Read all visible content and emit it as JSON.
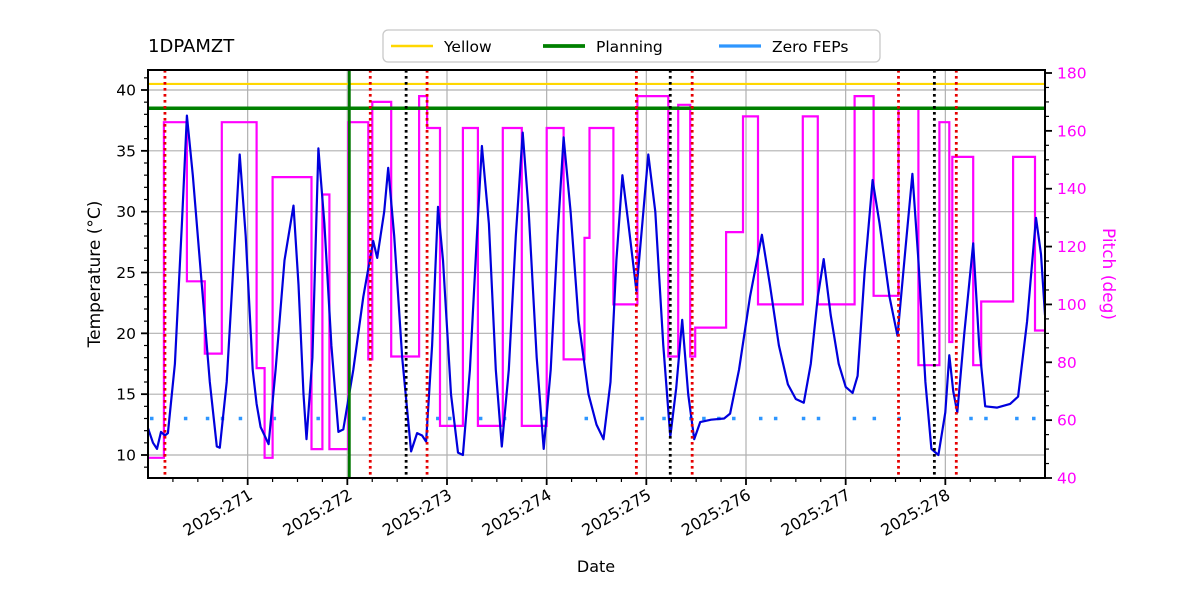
{
  "figure": {
    "title": "1DPAMZT",
    "xlabel": "Date",
    "ylabel_left": "Temperature (°C)",
    "ylabel_right": "Pitch (deg)",
    "legend": [
      {
        "label": "Yellow",
        "color": "#ffd700"
      },
      {
        "label": "Planning",
        "color": "#008000"
      },
      {
        "label": "Zero FEPs",
        "color": "#2e96ff"
      }
    ]
  },
  "chart_data": {
    "type": "line",
    "title": "1DPAMZT",
    "xlabel": "Date",
    "x_range_days": [
      270,
      279
    ],
    "x_major_ticks": [
      {
        "day": 271,
        "label": "2025:271"
      },
      {
        "day": 272,
        "label": "2025:272"
      },
      {
        "day": 273,
        "label": "2025:273"
      },
      {
        "day": 274,
        "label": "2025:274"
      },
      {
        "day": 275,
        "label": "2025:275"
      },
      {
        "day": 276,
        "label": "2025:276"
      },
      {
        "day": 277,
        "label": "2025:277"
      },
      {
        "day": 278,
        "label": "2025:278"
      }
    ],
    "x_minor_step": 0.25,
    "y_left": {
      "label": "Temperature (°C)",
      "ticks": [
        10,
        15,
        20,
        25,
        30,
        35,
        40
      ],
      "minor_step": 1,
      "axis_color": "#000000"
    },
    "y_right": {
      "label": "Pitch (deg)",
      "ticks": [
        40,
        60,
        80,
        100,
        120,
        140,
        160,
        180
      ],
      "minor_step": 5,
      "axis_color": "#ff00ff"
    },
    "grid": {
      "show": true,
      "color": "#b0b0b0"
    },
    "limit_lines": [
      {
        "name": "Yellow",
        "value": 40.5,
        "color": "#ffd700"
      },
      {
        "name": "Planning",
        "value": 38.5,
        "color": "#008000"
      }
    ],
    "vlines": {
      "red_dotted": [
        270.17,
        272.23,
        272.8,
        274.9,
        275.46,
        277.53,
        278.11
      ],
      "black_dotted": [
        272.59,
        275.24,
        277.89
      ],
      "green_solid": [
        272.02
      ],
      "red_color": "#e60000",
      "black_color": "#000000",
      "green_color": "#007700"
    },
    "series": [
      {
        "name": "temperature",
        "axis": "temp",
        "color": "#0000dd",
        "points": [
          [
            270.0,
            12.2
          ],
          [
            270.05,
            11.0
          ],
          [
            270.09,
            10.5
          ],
          [
            270.13,
            11.9
          ],
          [
            270.17,
            11.6
          ],
          [
            270.2,
            11.8
          ],
          [
            270.27,
            17.5
          ],
          [
            270.34,
            29.0
          ],
          [
            270.39,
            37.9
          ],
          [
            270.45,
            33.0
          ],
          [
            270.53,
            25.0
          ],
          [
            270.62,
            16.0
          ],
          [
            270.69,
            10.7
          ],
          [
            270.72,
            10.6
          ],
          [
            270.79,
            16.0
          ],
          [
            270.86,
            26.0
          ],
          [
            270.92,
            34.7
          ],
          [
            270.98,
            28.0
          ],
          [
            271.05,
            17.0
          ],
          [
            271.09,
            14.2
          ],
          [
            271.13,
            12.3
          ],
          [
            271.21,
            10.9
          ],
          [
            271.28,
            17.0
          ],
          [
            271.37,
            26.0
          ],
          [
            271.46,
            30.5
          ],
          [
            271.51,
            24.0
          ],
          [
            271.56,
            15.0
          ],
          [
            271.59,
            11.3
          ],
          [
            271.65,
            18.0
          ],
          [
            271.71,
            35.2
          ],
          [
            271.77,
            29.0
          ],
          [
            271.84,
            19.0
          ],
          [
            271.91,
            11.9
          ],
          [
            271.96,
            12.1
          ],
          [
            272.06,
            17.0
          ],
          [
            272.16,
            23.0
          ],
          [
            272.26,
            27.6
          ],
          [
            272.3,
            26.2
          ],
          [
            272.37,
            30.0
          ],
          [
            272.41,
            33.6
          ],
          [
            272.47,
            28.0
          ],
          [
            272.55,
            18.0
          ],
          [
            272.64,
            10.3
          ],
          [
            272.7,
            11.8
          ],
          [
            272.75,
            11.6
          ],
          [
            272.79,
            11.1
          ],
          [
            272.85,
            19.0
          ],
          [
            272.91,
            30.4
          ],
          [
            272.96,
            26.0
          ],
          [
            273.04,
            15.0
          ],
          [
            273.11,
            10.2
          ],
          [
            273.16,
            10.0
          ],
          [
            273.23,
            17.0
          ],
          [
            273.3,
            28.0
          ],
          [
            273.35,
            35.4
          ],
          [
            273.42,
            29.0
          ],
          [
            273.49,
            17.0
          ],
          [
            273.55,
            10.7
          ],
          [
            273.62,
            17.0
          ],
          [
            273.69,
            28.0
          ],
          [
            273.76,
            36.5
          ],
          [
            273.82,
            30.0
          ],
          [
            273.9,
            18.0
          ],
          [
            273.97,
            10.5
          ],
          [
            274.04,
            17.0
          ],
          [
            274.11,
            28.0
          ],
          [
            274.17,
            36.1
          ],
          [
            274.24,
            30.0
          ],
          [
            274.32,
            21.0
          ],
          [
            274.42,
            15.0
          ],
          [
            274.5,
            12.5
          ],
          [
            274.57,
            11.3
          ],
          [
            274.64,
            16.0
          ],
          [
            274.7,
            26.0
          ],
          [
            274.76,
            33.0
          ],
          [
            274.82,
            29.0
          ],
          [
            274.9,
            23.5
          ],
          [
            274.96,
            29.0
          ],
          [
            275.02,
            34.7
          ],
          [
            275.09,
            30.0
          ],
          [
            275.17,
            19.0
          ],
          [
            275.24,
            11.5
          ],
          [
            275.3,
            15.5
          ],
          [
            275.36,
            21.1
          ],
          [
            275.42,
            15.0
          ],
          [
            275.48,
            11.3
          ],
          [
            275.54,
            12.7
          ],
          [
            275.65,
            12.9
          ],
          [
            275.78,
            13.0
          ],
          [
            275.84,
            13.4
          ],
          [
            275.93,
            17.0
          ],
          [
            276.04,
            23.0
          ],
          [
            276.16,
            28.1
          ],
          [
            276.24,
            24.0
          ],
          [
            276.33,
            19.0
          ],
          [
            276.42,
            15.8
          ],
          [
            276.5,
            14.6
          ],
          [
            276.58,
            14.3
          ],
          [
            276.65,
            17.5
          ],
          [
            276.72,
            23.0
          ],
          [
            276.78,
            26.1
          ],
          [
            276.85,
            21.5
          ],
          [
            276.93,
            17.5
          ],
          [
            277.0,
            15.6
          ],
          [
            277.07,
            15.1
          ],
          [
            277.12,
            16.5
          ],
          [
            277.19,
            25.0
          ],
          [
            277.27,
            32.6
          ],
          [
            277.34,
            29.0
          ],
          [
            277.44,
            23.0
          ],
          [
            277.52,
            19.8
          ],
          [
            277.6,
            27.0
          ],
          [
            277.67,
            33.1
          ],
          [
            277.73,
            26.0
          ],
          [
            277.8,
            16.0
          ],
          [
            277.86,
            10.5
          ],
          [
            277.93,
            10.0
          ],
          [
            278.0,
            13.5
          ],
          [
            278.04,
            18.2
          ],
          [
            278.08,
            15.2
          ],
          [
            278.12,
            13.5
          ],
          [
            278.19,
            20.0
          ],
          [
            278.28,
            27.4
          ],
          [
            278.34,
            19.0
          ],
          [
            278.4,
            14.0
          ],
          [
            278.52,
            13.9
          ],
          [
            278.65,
            14.2
          ],
          [
            278.73,
            14.8
          ],
          [
            278.82,
            21.0
          ],
          [
            278.91,
            29.5
          ],
          [
            278.96,
            26.5
          ],
          [
            279.0,
            21.5
          ]
        ]
      },
      {
        "name": "pitch",
        "axis": "pitch",
        "color": "#ff00ff",
        "steps": [
          [
            270.0,
            270.16,
            47
          ],
          [
            270.16,
            270.39,
            163
          ],
          [
            270.39,
            270.57,
            108
          ],
          [
            270.57,
            270.74,
            83
          ],
          [
            270.74,
            271.09,
            163
          ],
          [
            271.09,
            271.17,
            78
          ],
          [
            271.17,
            271.25,
            47
          ],
          [
            271.25,
            271.64,
            144
          ],
          [
            271.64,
            271.75,
            50
          ],
          [
            271.75,
            271.82,
            138
          ],
          [
            271.82,
            272.01,
            50
          ],
          [
            272.01,
            272.21,
            163
          ],
          [
            272.21,
            272.25,
            81
          ],
          [
            272.25,
            272.44,
            170
          ],
          [
            272.44,
            272.72,
            82
          ],
          [
            272.72,
            272.8,
            172
          ],
          [
            272.8,
            272.93,
            161
          ],
          [
            272.93,
            273.16,
            58
          ],
          [
            273.16,
            273.31,
            161
          ],
          [
            273.31,
            273.56,
            58
          ],
          [
            273.56,
            273.75,
            161
          ],
          [
            273.75,
            274.0,
            58
          ],
          [
            274.0,
            274.17,
            161
          ],
          [
            274.17,
            274.38,
            81
          ],
          [
            274.38,
            274.43,
            123
          ],
          [
            274.43,
            274.67,
            161
          ],
          [
            274.67,
            274.91,
            100
          ],
          [
            274.91,
            275.22,
            172
          ],
          [
            275.22,
            275.32,
            82
          ],
          [
            275.32,
            275.44,
            169
          ],
          [
            275.44,
            275.49,
            82
          ],
          [
            275.49,
            275.8,
            92
          ],
          [
            275.8,
            275.97,
            125
          ],
          [
            275.97,
            276.12,
            165
          ],
          [
            276.12,
            276.57,
            100
          ],
          [
            276.57,
            276.72,
            165
          ],
          [
            276.72,
            277.09,
            100
          ],
          [
            277.09,
            277.28,
            172
          ],
          [
            277.28,
            277.53,
            103
          ],
          [
            277.53,
            277.73,
            168
          ],
          [
            277.73,
            277.94,
            79
          ],
          [
            277.94,
            278.04,
            163
          ],
          [
            278.04,
            278.07,
            87
          ],
          [
            278.07,
            278.28,
            151
          ],
          [
            278.28,
            278.36,
            79
          ],
          [
            278.36,
            278.68,
            101
          ],
          [
            278.68,
            278.9,
            151
          ],
          [
            278.9,
            279.0,
            91
          ]
        ]
      },
      {
        "name": "zero_feps",
        "axis": "temp",
        "color": "#2e96ff",
        "value": 13,
        "segments": [
          [
            270.02,
            270.08
          ],
          [
            270.36,
            270.42
          ],
          [
            270.58,
            270.64
          ],
          [
            270.73,
            270.79
          ],
          [
            270.91,
            270.97
          ],
          [
            271.25,
            271.31
          ],
          [
            271.69,
            271.75
          ],
          [
            272.15,
            272.21
          ],
          [
            272.89,
            272.95
          ],
          [
            273.01,
            273.07
          ],
          [
            273.32,
            273.38
          ],
          [
            273.56,
            273.62
          ],
          [
            273.96,
            274.02
          ],
          [
            274.38,
            274.44
          ],
          [
            274.94,
            275.0
          ],
          [
            275.16,
            275.22
          ],
          [
            275.43,
            275.49
          ],
          [
            275.56,
            275.62
          ],
          [
            275.71,
            275.77
          ],
          [
            275.86,
            275.92
          ],
          [
            276.13,
            276.19
          ],
          [
            276.28,
            276.34
          ],
          [
            276.56,
            276.62
          ],
          [
            276.71,
            276.77
          ],
          [
            277.07,
            277.13
          ],
          [
            277.27,
            277.33
          ],
          [
            277.52,
            277.56
          ],
          [
            278.24,
            278.3
          ],
          [
            278.39,
            278.45
          ],
          [
            278.7,
            278.76
          ],
          [
            278.87,
            278.93
          ]
        ]
      }
    ]
  }
}
